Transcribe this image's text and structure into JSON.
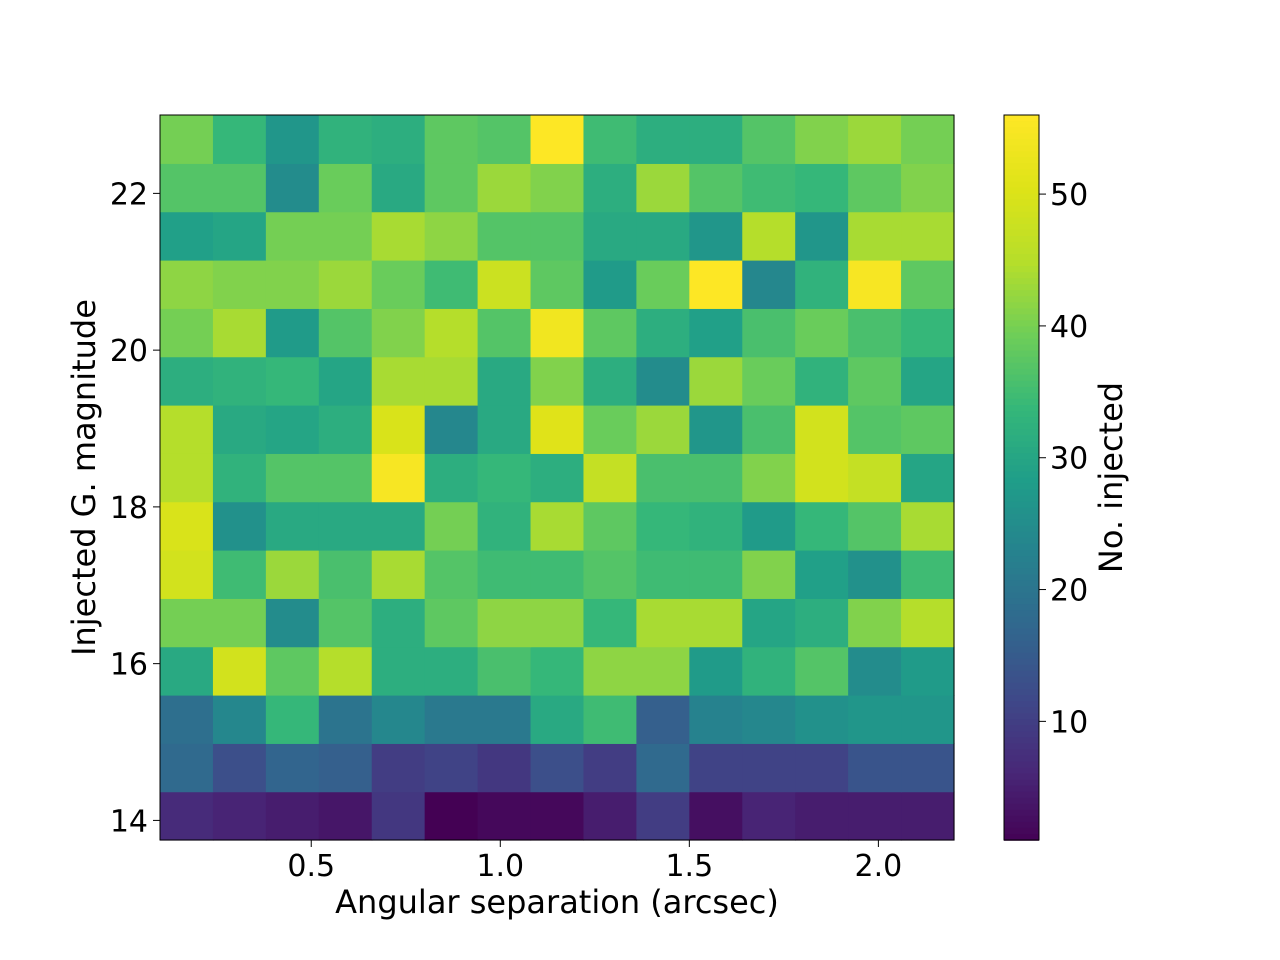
{
  "chart_data": {
    "type": "heatmap",
    "xlabel": "Angular separation (arcsec)",
    "ylabel": "Injected G. magnitude",
    "colorbar_label": "No. injected",
    "colormap": "viridis",
    "xlim": [
      0.1,
      2.2
    ],
    "ylim": [
      13.75,
      23.0
    ],
    "clim": [
      1,
      56
    ],
    "x_ticks": [
      0.5,
      1.0,
      1.5,
      2.0
    ],
    "x_tick_labels": [
      "0.5",
      "1.0",
      "1.5",
      "2.0"
    ],
    "y_ticks": [
      14,
      16,
      18,
      20,
      22
    ],
    "y_tick_labels": [
      "14",
      "16",
      "18",
      "20",
      "22"
    ],
    "colorbar_ticks": [
      10,
      20,
      30,
      40,
      50
    ],
    "colorbar_tick_labels": [
      "10",
      "20",
      "30",
      "40",
      "50"
    ],
    "x_bin_edges": [
      0.1,
      0.24,
      0.38,
      0.52,
      0.66,
      0.8,
      0.94,
      1.08,
      1.22,
      1.36,
      1.5,
      1.64,
      1.78,
      1.92,
      2.06,
      2.2
    ],
    "y_bin_edges": [
      13.75,
      14.367,
      14.983,
      15.6,
      16.217,
      16.833,
      17.45,
      18.067,
      18.683,
      19.3,
      19.917,
      20.533,
      21.15,
      21.767,
      22.383,
      23.0
    ],
    "counts_bottom_to_top": [
      [
        7,
        6,
        5,
        4,
        9,
        1,
        2,
        2,
        5,
        10,
        3,
        6,
        5,
        5,
        5
      ],
      [
        18,
        13,
        17,
        16,
        10,
        11,
        9,
        13,
        10,
        18,
        11,
        11,
        11,
        14,
        14
      ],
      [
        19,
        24,
        34,
        20,
        24,
        21,
        21,
        31,
        35,
        16,
        23,
        24,
        26,
        27,
        27
      ],
      [
        31,
        49,
        38,
        45,
        32,
        32,
        36,
        34,
        42,
        42,
        28,
        33,
        37,
        25,
        28
      ],
      [
        40,
        40,
        25,
        37,
        32,
        38,
        42,
        42,
        34,
        44,
        44,
        30,
        32,
        41,
        45
      ],
      [
        49,
        35,
        43,
        36,
        44,
        37,
        35,
        35,
        37,
        35,
        35,
        41,
        29,
        26,
        35
      ],
      [
        50,
        26,
        31,
        31,
        31,
        40,
        33,
        44,
        38,
        34,
        33,
        28,
        34,
        37,
        44
      ],
      [
        45,
        33,
        37,
        37,
        55,
        32,
        34,
        32,
        47,
        36,
        36,
        41,
        49,
        47,
        30
      ],
      [
        45,
        31,
        30,
        32,
        50,
        24,
        31,
        51,
        39,
        43,
        27,
        36,
        49,
        37,
        38
      ],
      [
        32,
        33,
        34,
        30,
        44,
        44,
        31,
        41,
        32,
        25,
        43,
        39,
        33,
        38,
        30
      ],
      [
        40,
        44,
        28,
        37,
        41,
        45,
        37,
        54,
        38,
        32,
        29,
        36,
        39,
        36,
        34
      ],
      [
        42,
        41,
        41,
        43,
        39,
        35,
        48,
        38,
        28,
        39,
        56,
        24,
        33,
        55,
        38
      ],
      [
        29,
        30,
        40,
        40,
        44,
        42,
        37,
        37,
        31,
        31,
        27,
        45,
        27,
        44,
        44
      ],
      [
        37,
        37,
        25,
        39,
        31,
        38,
        43,
        41,
        32,
        43,
        37,
        35,
        34,
        38,
        41
      ],
      [
        40,
        34,
        27,
        33,
        32,
        38,
        37,
        56,
        35,
        32,
        32,
        37,
        41,
        43,
        40
      ]
    ]
  }
}
